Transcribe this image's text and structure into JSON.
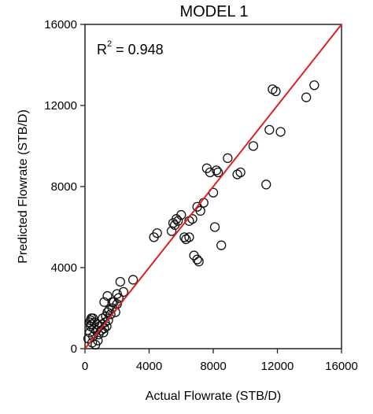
{
  "chart_data": {
    "type": "scatter",
    "title": "MODEL 1",
    "xlabel": "Actual Flowrate (STB/D)",
    "ylabel": "Predicted Flowrate (STB/D)",
    "xlim": [
      0,
      16000
    ],
    "ylim": [
      0,
      16000
    ],
    "xticks": [
      "0",
      "4000",
      "8000",
      "12000",
      "16000"
    ],
    "yticks": [
      "0",
      "4000",
      "8000",
      "12000",
      "16000"
    ],
    "annotation": {
      "r2_label": "R",
      "r2_sup": "2",
      "r2_value": " = 0.948"
    },
    "fit_line": {
      "x": [
        0,
        16000
      ],
      "y": [
        0,
        16000
      ],
      "color": "#e02020"
    },
    "marker": "open-circle",
    "grid": false,
    "x": [
      200,
      300,
      350,
      400,
      450,
      500,
      550,
      600,
      650,
      700,
      750,
      800,
      850,
      900,
      1000,
      1050,
      1100,
      1150,
      1200,
      1250,
      1300,
      1350,
      1400,
      1450,
      1500,
      1600,
      1700,
      1800,
      1900,
      2000,
      2100,
      2200,
      2400,
      3000,
      300,
      400,
      500,
      350,
      1200,
      1400,
      1700,
      2000,
      4300,
      4500,
      5400,
      5500,
      5600,
      5700,
      5800,
      6000,
      6200,
      6300,
      6500,
      6700,
      7000,
      7200,
      7400,
      7600,
      7800,
      8000,
      8200,
      8300,
      8900,
      9500,
      9700,
      10500,
      11300,
      11500,
      11700,
      11900,
      12200,
      13800,
      14300,
      7000,
      7100,
      6800,
      8500,
      8100,
      6500
    ],
    "y": [
      500,
      800,
      1100,
      1500,
      300,
      600,
      1000,
      1300,
      200,
      900,
      1200,
      400,
      700,
      1100,
      900,
      1200,
      1500,
      800,
      1000,
      1300,
      1600,
      1100,
      1800,
      1400,
      1900,
      1700,
      2000,
      2300,
      1800,
      2700,
      2500,
      3300,
      2800,
      3400,
      1300,
      1200,
      1500,
      1400,
      2300,
      2600,
      2300,
      2200,
      5500,
      5700,
      5800,
      6200,
      6100,
      6400,
      6300,
      6600,
      5500,
      5400,
      6300,
      6400,
      7000,
      6800,
      7200,
      8900,
      8700,
      7700,
      8800,
      8700,
      9400,
      8600,
      8700,
      10000,
      8100,
      10800,
      12800,
      12700,
      10700,
      12400,
      13000,
      4400,
      4300,
      4600,
      5100,
      6000,
      5500
    ],
    "r2": 0.948
  }
}
